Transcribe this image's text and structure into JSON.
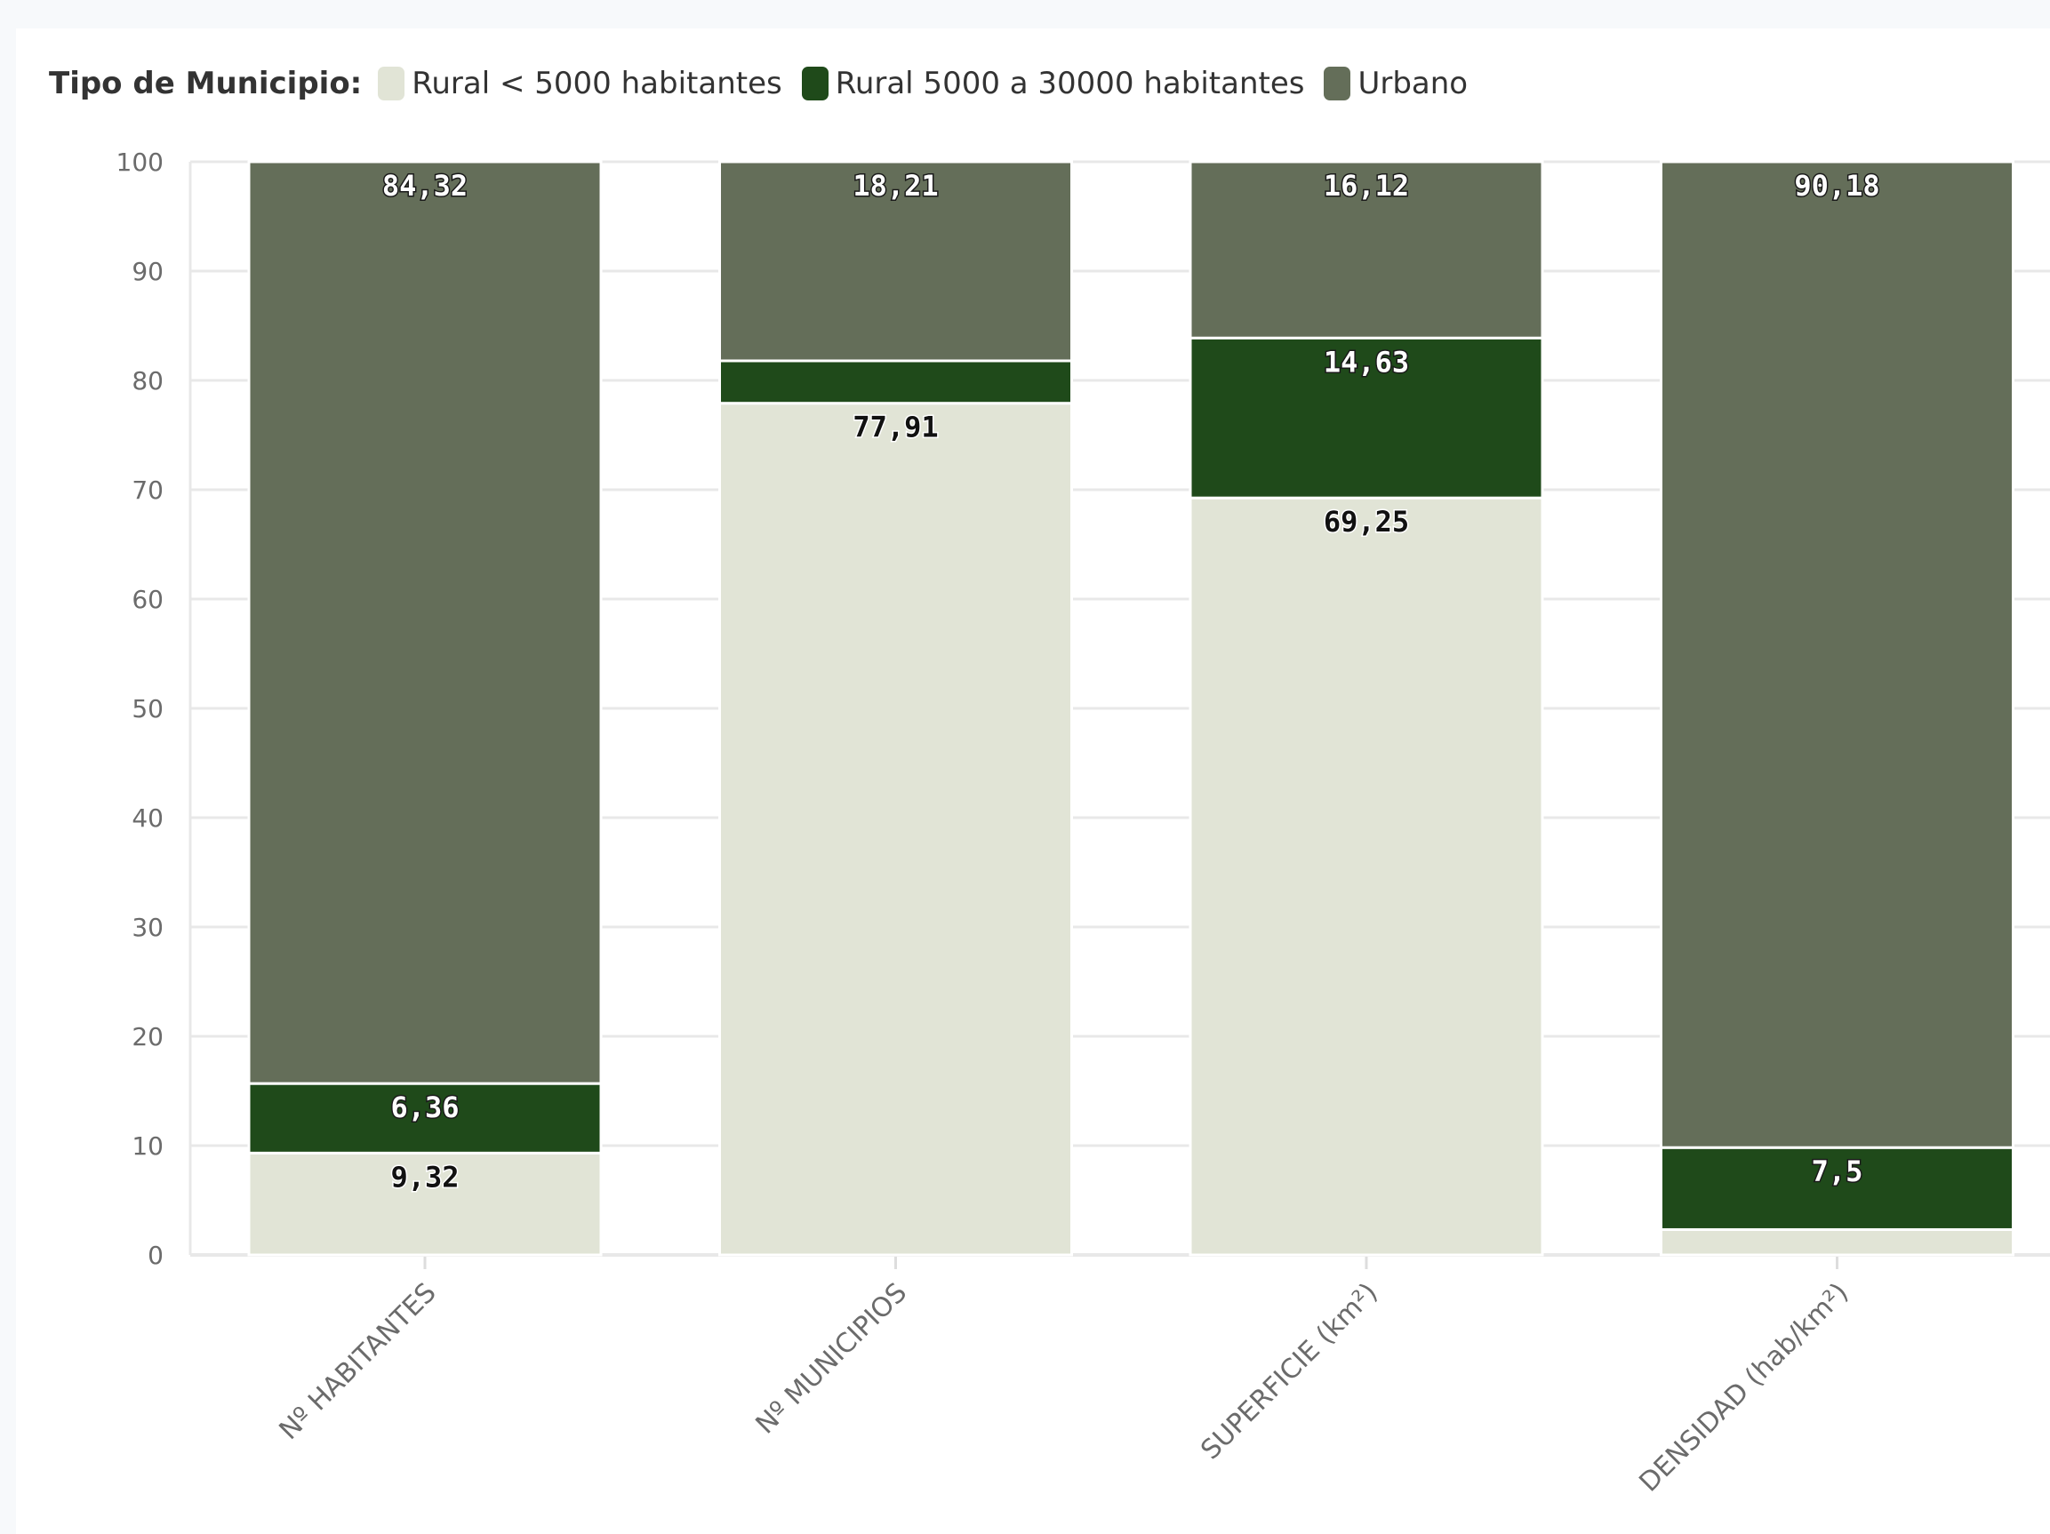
{
  "legend": {
    "title": "Tipo de Municipio:"
  },
  "colors": {
    "rural_small": "#e1e4d6",
    "rural_medium": "#1f4a1a",
    "urban": "#646e59",
    "gridline": "#e8e8e8",
    "axis_text": "#6b6b6b"
  },
  "chart_data": {
    "type": "bar",
    "stacked": true,
    "title": "",
    "xlabel": "",
    "ylabel": "",
    "ylim": [
      0,
      100
    ],
    "yticks": [
      0,
      10,
      20,
      30,
      40,
      50,
      60,
      70,
      80,
      90,
      100
    ],
    "grid": true,
    "legend_position": "top-left",
    "categories": [
      "Nº HABITANTES",
      "Nº MUNICIPIOS",
      "SUPERFICIE (km²)",
      "DENSIDAD (hab/km²)"
    ],
    "series": [
      {
        "name": "Rural < 5000 habitantes",
        "color": "#e1e4d6",
        "values": [
          9.32,
          77.91,
          69.25,
          2.32
        ],
        "labels": [
          "9,32",
          "77,91",
          "69,25",
          ""
        ]
      },
      {
        "name": "Rural 5000 a 30000 habitantes",
        "color": "#1f4a1a",
        "values": [
          6.36,
          3.88,
          14.63,
          7.5
        ],
        "labels": [
          "6,36",
          "",
          "14,63",
          "7,5"
        ]
      },
      {
        "name": "Urbano",
        "color": "#646e59",
        "values": [
          84.32,
          18.21,
          16.12,
          90.18
        ],
        "labels": [
          "84,32",
          "18,21",
          "16,12",
          "90,18"
        ]
      }
    ]
  }
}
